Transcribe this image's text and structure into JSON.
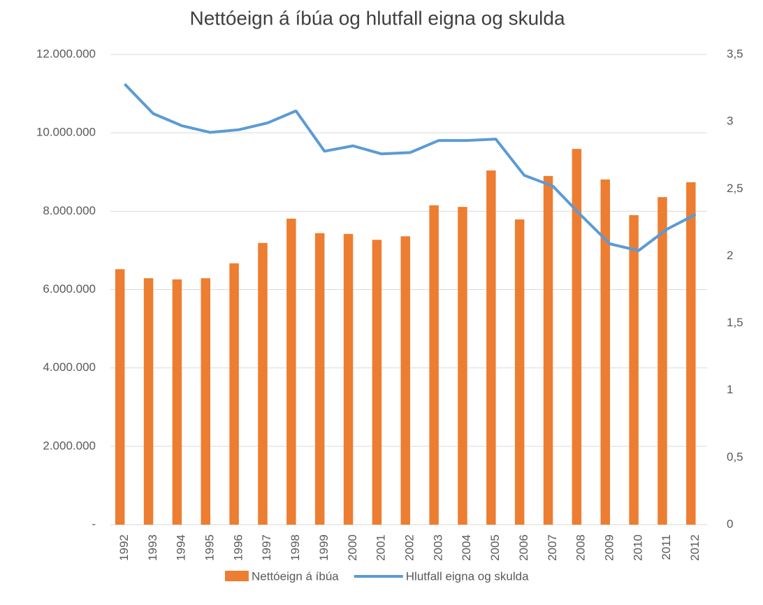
{
  "chart_data": {
    "type": "bar-line",
    "title": "Nettóeign á íbúa og hlutfall eigna og skulda",
    "categories": [
      "1992",
      "1993",
      "1994",
      "1995",
      "1996",
      "1997",
      "1998",
      "1999",
      "2000",
      "2001",
      "2002",
      "2003",
      "2004",
      "2005",
      "2006",
      "2007",
      "2008",
      "2009",
      "2010",
      "2011",
      "2012"
    ],
    "series": [
      {
        "name": "Nettóeign á íbúa",
        "type": "bar",
        "color": "#ed7d31",
        "values": [
          6520000,
          6290000,
          6260000,
          6290000,
          6670000,
          7190000,
          7810000,
          7440000,
          7420000,
          7270000,
          7360000,
          8150000,
          8110000,
          9040000,
          7790000,
          8900000,
          9590000,
          8810000,
          7900000,
          8360000,
          8740000
        ]
      },
      {
        "name": "Hlutfall eigna og skulda",
        "type": "line",
        "color": "#5b9bd5",
        "axis": "y2",
        "values": [
          3.28,
          3.06,
          2.97,
          2.92,
          2.94,
          2.99,
          3.08,
          2.78,
          2.82,
          2.76,
          2.77,
          2.86,
          2.86,
          2.87,
          2.6,
          2.52,
          2.3,
          2.09,
          2.04,
          2.2,
          2.31
        ]
      }
    ],
    "ylim": [
      0,
      12000000
    ],
    "yticks": [
      {
        "value": 0,
        "label": "-"
      },
      {
        "value": 2000000,
        "label": "2.000.000"
      },
      {
        "value": 4000000,
        "label": "4.000.000"
      },
      {
        "value": 6000000,
        "label": "6.000.000"
      },
      {
        "value": 8000000,
        "label": "8.000.000"
      },
      {
        "value": 10000000,
        "label": "10.000.000"
      },
      {
        "value": 12000000,
        "label": "12.000.000"
      }
    ],
    "y2lim": [
      0,
      3.5
    ],
    "y2ticks": [
      0,
      {
        "value": 0.5,
        "label": "0,5"
      },
      1,
      {
        "value": 1.5,
        "label": "1,5"
      },
      2,
      {
        "value": 2.5,
        "label": "2,5"
      },
      3,
      {
        "value": 3.5,
        "label": "3,5"
      }
    ],
    "grid": true,
    "legend": "bottom"
  }
}
